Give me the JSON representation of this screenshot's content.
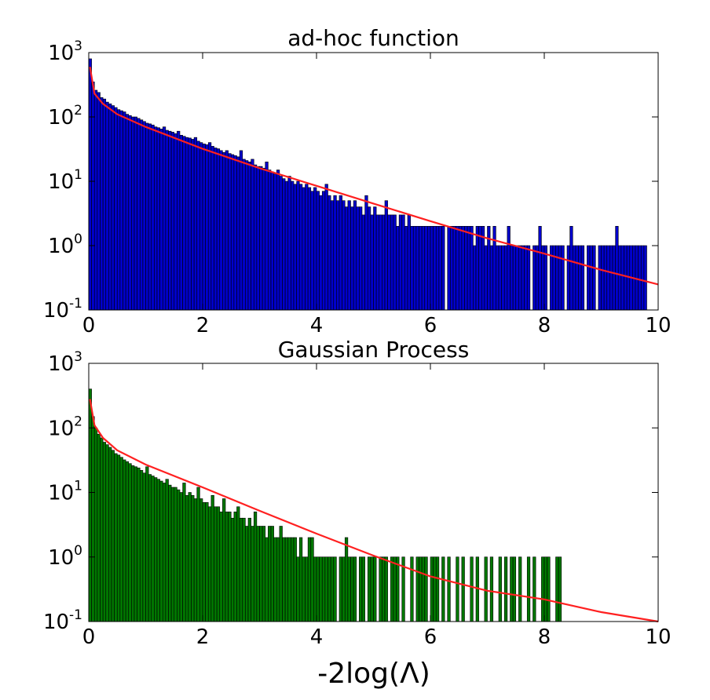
{
  "xlabel": "-2log(Λ)",
  "chart_data": [
    {
      "type": "bar",
      "title": "ad-hoc function",
      "xlabel": "",
      "ylabel": "",
      "xlim": [
        0,
        10
      ],
      "ylim": [
        0.1,
        1000
      ],
      "yscale": "log",
      "xticks": [
        "0",
        "2",
        "4",
        "6",
        "8",
        "10"
      ],
      "yticks": [
        {
          "base": "10",
          "exp": "-1"
        },
        {
          "base": "10",
          "exp": "0"
        },
        {
          "base": "10",
          "exp": "1"
        },
        {
          "base": "10",
          "exp": "2"
        },
        {
          "base": "10",
          "exp": "3"
        }
      ],
      "bin_width": 0.05,
      "bar_color": "#0000cc",
      "fit_color": "#ff2020",
      "bin_start": 0,
      "counts": [
        800,
        350,
        260,
        240,
        200,
        190,
        170,
        160,
        150,
        140,
        130,
        125,
        120,
        110,
        105,
        100,
        100,
        95,
        90,
        85,
        80,
        78,
        75,
        70,
        68,
        65,
        70,
        62,
        60,
        58,
        55,
        60,
        52,
        50,
        48,
        47,
        45,
        48,
        42,
        40,
        38,
        37,
        40,
        35,
        33,
        32,
        30,
        28,
        30,
        27,
        26,
        25,
        24,
        30,
        22,
        21,
        20,
        22,
        18,
        17,
        17,
        16,
        20,
        15,
        14,
        13,
        15,
        12,
        11,
        10,
        12,
        10,
        9,
        10,
        9,
        8,
        9,
        8,
        7,
        8,
        7,
        6,
        7,
        9,
        6,
        5,
        6,
        5,
        6,
        5,
        4,
        5,
        4,
        5,
        4,
        4,
        3,
        6,
        4,
        3,
        4,
        3,
        3,
        3,
        5,
        3,
        3,
        3,
        2,
        3,
        3,
        2,
        3,
        2,
        2,
        2,
        2,
        2,
        2,
        2,
        2,
        2,
        2,
        2,
        2,
        0.1,
        2,
        2,
        2,
        2,
        2,
        2,
        2,
        2,
        2,
        1,
        2,
        2,
        2,
        1,
        2,
        1,
        2,
        1,
        1,
        1,
        1,
        2,
        1,
        1,
        1,
        1,
        1,
        1,
        1,
        0.1,
        1,
        1,
        2,
        1,
        1,
        0.1,
        1,
        1,
        1,
        1,
        1,
        0.1,
        1,
        2,
        1,
        1,
        1,
        1,
        0.1,
        1,
        1,
        1,
        0.1,
        1,
        1,
        1,
        1,
        1,
        1,
        2,
        1,
        1,
        1,
        1,
        1,
        1,
        1,
        1,
        1,
        1
      ],
      "fit_curve": {
        "x": [
          0.02,
          0.1,
          0.25,
          0.5,
          1,
          2,
          3,
          4,
          5,
          6,
          7,
          8,
          9,
          10
        ],
        "y": [
          600,
          230,
          160,
          110,
          70,
          32,
          16,
          8.5,
          4.5,
          2.4,
          1.3,
          0.75,
          0.42,
          0.25
        ]
      }
    },
    {
      "type": "bar",
      "title": "Gaussian Process",
      "xlabel": "-2log(Λ)",
      "ylabel": "",
      "xlim": [
        0,
        10
      ],
      "ylim": [
        0.1,
        1000
      ],
      "yscale": "log",
      "xticks": [
        "0",
        "2",
        "4",
        "6",
        "8",
        "10"
      ],
      "yticks": [
        {
          "base": "10",
          "exp": "-1"
        },
        {
          "base": "10",
          "exp": "0"
        },
        {
          "base": "10",
          "exp": "1"
        },
        {
          "base": "10",
          "exp": "2"
        },
        {
          "base": "10",
          "exp": "3"
        }
      ],
      "bin_width": 0.05,
      "bar_color": "#007700",
      "fit_color": "#ff2020",
      "bin_start": 0,
      "counts": [
        400,
        150,
        100,
        80,
        70,
        60,
        55,
        50,
        45,
        40,
        38,
        35,
        32,
        30,
        28,
        26,
        25,
        24,
        22,
        20,
        25,
        19,
        18,
        17,
        16,
        15,
        14,
        16,
        13,
        12,
        12,
        11,
        10,
        14,
        9,
        10,
        9,
        8,
        12,
        8,
        7,
        7,
        6,
        9,
        6,
        6,
        5,
        8,
        5,
        5,
        4,
        5,
        6,
        4,
        4,
        3,
        4,
        3,
        5,
        3,
        3,
        3,
        2,
        3,
        3,
        2,
        2,
        3,
        2,
        2,
        2,
        2,
        2,
        1,
        2,
        1,
        1,
        2,
        2,
        1,
        1,
        1,
        1,
        1,
        1,
        1,
        1,
        0.1,
        1,
        1,
        2,
        1,
        1,
        1,
        0.1,
        1,
        1,
        0.1,
        1,
        1,
        1,
        0.1,
        1,
        1,
        1,
        0.1,
        1,
        1,
        1,
        0.1,
        1,
        0.1,
        0.1,
        1,
        0.1,
        1,
        1,
        1,
        1,
        0.1,
        1,
        1,
        1,
        0.1,
        1,
        0.1,
        1,
        0.1,
        0.1,
        1,
        0.1,
        1,
        0.1,
        0.1,
        1,
        0.1,
        1,
        0.1,
        0.1,
        1,
        0.1,
        1,
        0.1,
        0.1,
        1,
        0.1,
        1,
        0.1,
        1,
        1,
        0.1,
        1,
        0.1,
        0.1,
        1,
        0.1,
        1,
        0.1,
        0.1,
        1,
        1,
        1,
        0.1,
        0.1,
        1,
        1
      ],
      "fit_curve": {
        "x": [
          0.02,
          0.1,
          0.25,
          0.5,
          1,
          2,
          3,
          4,
          5,
          6,
          7,
          8,
          9,
          10
        ],
        "y": [
          280,
          110,
          70,
          45,
          27,
          12,
          5.2,
          2.3,
          1.05,
          0.5,
          0.3,
          0.22,
          0.14,
          0.1
        ]
      }
    }
  ]
}
